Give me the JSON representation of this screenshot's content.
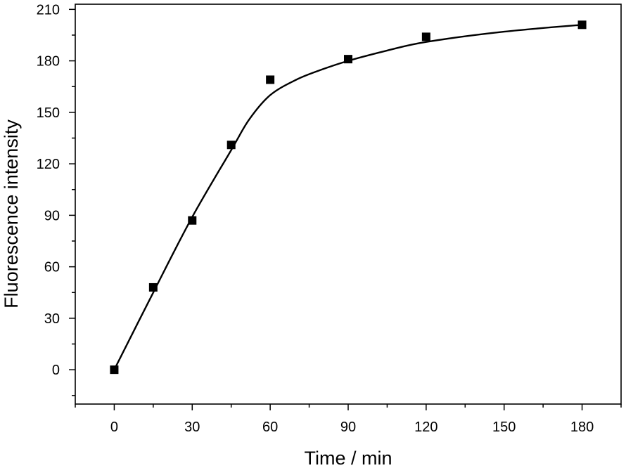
{
  "chart_data": {
    "type": "scatter",
    "title": "",
    "xlabel": "Time / min",
    "ylabel": "Fluorescence intensity",
    "xlim": [
      -15,
      195
    ],
    "ylim": [
      -20,
      213
    ],
    "xticks": [
      0,
      30,
      60,
      90,
      120,
      150,
      180
    ],
    "yticks": [
      0,
      30,
      60,
      90,
      120,
      150,
      180,
      210
    ],
    "grid": false,
    "series": [
      {
        "kind": "markers",
        "marker": "square",
        "color": "#000000",
        "x": [
          0,
          15,
          30,
          45,
          60,
          90,
          120,
          180
        ],
        "y": [
          0,
          48,
          87,
          131,
          169,
          181,
          194,
          201
        ]
      },
      {
        "kind": "fitted-line",
        "color": "#000000",
        "x": [
          0,
          15,
          30,
          45,
          52,
          60,
          70,
          80,
          90,
          105,
          120,
          150,
          180
        ],
        "y": [
          0,
          45,
          89,
          128,
          146,
          160,
          169,
          175,
          180,
          186,
          191,
          197,
          201
        ]
      }
    ]
  }
}
